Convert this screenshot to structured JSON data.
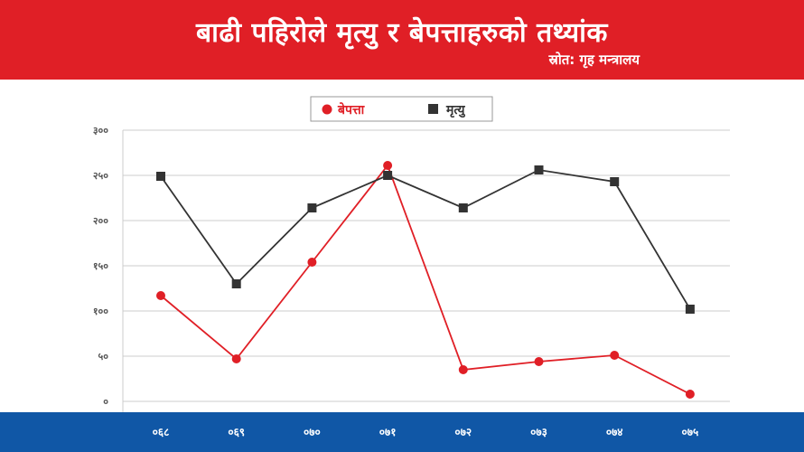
{
  "header": {
    "title": "बाढी पहिरोले मृत्यु र बेपत्ताहरुको तथ्यांक",
    "source": "स्रोत: गृह मन्त्रालय"
  },
  "colors": {
    "header_bg": "#e01f26",
    "footer_bg": "#1057a6",
    "series_missing": "#e01f26",
    "series_deaths": "#333333"
  },
  "chart_data": {
    "type": "line",
    "title": "बाढी पहिरोले मृत्यु र बेपत्ताहरुको तथ्यांक",
    "categories": [
      "०६८",
      "०६९",
      "०७०",
      "०७१",
      "०७२",
      "०७३",
      "०७४",
      "०७५"
    ],
    "y_ticks": [
      "०",
      "५०",
      "१००",
      "१५०",
      "२००",
      "२५०",
      "३००"
    ],
    "y_tick_values": [
      0,
      50,
      100,
      150,
      200,
      250,
      300
    ],
    "ylim": [
      0,
      300
    ],
    "grid": true,
    "legend_position": "top-center",
    "series": [
      {
        "name": "बेपत्ता",
        "color": "#e01f26",
        "marker": "circle",
        "values": [
          117,
          47,
          154,
          261,
          35,
          44,
          51,
          8
        ]
      },
      {
        "name": "मृत्यु",
        "color": "#333333",
        "marker": "square",
        "values": [
          249,
          130,
          214,
          250,
          214,
          256,
          243,
          102
        ]
      }
    ]
  }
}
